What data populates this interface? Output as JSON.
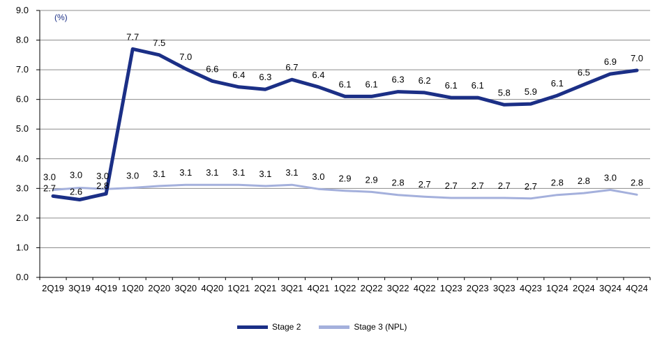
{
  "chart_data": {
    "type": "line",
    "unit_label": "(%)",
    "categories": [
      "2Q19",
      "3Q19",
      "4Q19",
      "1Q20",
      "2Q20",
      "3Q20",
      "4Q20",
      "1Q21",
      "2Q21",
      "3Q21",
      "4Q21",
      "1Q22",
      "2Q22",
      "3Q22",
      "4Q22",
      "1Q23",
      "2Q23",
      "3Q23",
      "4Q23",
      "1Q24",
      "2Q24",
      "3Q24",
      "4Q24"
    ],
    "ylim": [
      0,
      9
    ],
    "yticks": [
      "0.0",
      "1.0",
      "2.0",
      "3.0",
      "4.0",
      "5.0",
      "6.0",
      "7.0",
      "8.0",
      "9.0"
    ],
    "grid": true,
    "legend_position": "bottom",
    "series": [
      {
        "name": "Stage 2",
        "color": "#1b2f86",
        "values": [
          2.74,
          2.62,
          2.82,
          7.7,
          7.5,
          7.03,
          6.62,
          6.42,
          6.34,
          6.67,
          6.42,
          6.1,
          6.1,
          6.26,
          6.23,
          6.06,
          6.06,
          5.82,
          5.85,
          6.13,
          6.5,
          6.86,
          6.98
        ],
        "labels": [
          "2.7",
          "2.6",
          "2.8",
          "7.7",
          "7.5",
          "7.0",
          "6.6",
          "6.4",
          "6.3",
          "6.7",
          "6.4",
          "6.1",
          "6.1",
          "6.3",
          "6.2",
          "6.1",
          "6.1",
          "5.8",
          "5.9",
          "6.1",
          "6.5",
          "6.9",
          "7.0"
        ]
      },
      {
        "name": "Stage 3 (NPL)",
        "color": "#a4b0dc",
        "values": [
          2.95,
          3.02,
          2.98,
          3.02,
          3.08,
          3.12,
          3.12,
          3.12,
          3.08,
          3.12,
          2.98,
          2.92,
          2.88,
          2.78,
          2.72,
          2.68,
          2.68,
          2.68,
          2.66,
          2.78,
          2.84,
          2.95,
          2.79
        ],
        "labels": [
          "3.0",
          "3.0",
          "3.0",
          "3.0",
          "3.1",
          "3.1",
          "3.1",
          "3.1",
          "3.1",
          "3.1",
          "3.0",
          "2.9",
          "2.9",
          "2.8",
          "2.7",
          "2.7",
          "2.7",
          "2.7",
          "2.7",
          "2.8",
          "2.8",
          "3.0",
          "2.8"
        ]
      }
    ]
  }
}
